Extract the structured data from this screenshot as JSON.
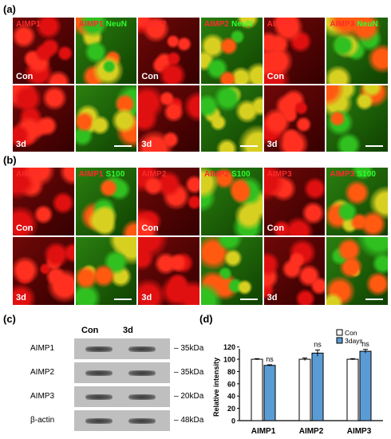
{
  "panel_letters": {
    "a": "(a)",
    "b": "(b)",
    "c": "(c)",
    "d": "(d)"
  },
  "panel_a": {
    "groups": [
      {
        "marker": "AIMP1",
        "merge_marker": "AIMP1",
        "colabel": "NeuN"
      },
      {
        "marker": "AIMP2",
        "merge_marker": "AIMP2",
        "colabel": "NeuN"
      },
      {
        "marker": "AIMP3",
        "merge_marker": "AIMP3",
        "colabel": "NeuN"
      }
    ],
    "rows": [
      "Con",
      "3d"
    ]
  },
  "panel_b": {
    "groups": [
      {
        "marker": "AIMP1",
        "merge_marker": "AIMP1",
        "colabel": "S100"
      },
      {
        "marker": "AIMP2",
        "merge_marker": "AIMP2",
        "colabel": "S100"
      },
      {
        "marker": "AIMP3",
        "merge_marker": "AIMP3",
        "colabel": "S100"
      }
    ],
    "rows": [
      "Con",
      "3d"
    ]
  },
  "panel_c": {
    "columns": [
      "Con",
      "3d"
    ],
    "rows": [
      {
        "name": "AIMP1",
        "size": "35kDa"
      },
      {
        "name": "AIMP2",
        "size": "35kDa"
      },
      {
        "name": "AIMP3",
        "size": "20kDa"
      },
      {
        "name": "β-actin",
        "size": "48kDa"
      }
    ]
  },
  "chart_data": {
    "type": "bar",
    "categories": [
      "AIMP1",
      "AIMP2",
      "AIMP3"
    ],
    "series": [
      {
        "name": "Con",
        "values": [
          100,
          100,
          100
        ],
        "errors": [
          1,
          2,
          1
        ],
        "color": "#ffffff"
      },
      {
        "name": "3days",
        "values": [
          90,
          110,
          113
        ],
        "errors": [
          1,
          5,
          3
        ],
        "color": "#5b9bd5"
      }
    ],
    "ylabel": "Relative intensity",
    "xlabel": "",
    "ylim": [
      0,
      130
    ],
    "yticks": [
      0,
      20,
      40,
      60,
      80,
      100,
      120
    ],
    "annotations": [
      "ns",
      "ns",
      "ns"
    ],
    "legend_placement": "top-right"
  }
}
